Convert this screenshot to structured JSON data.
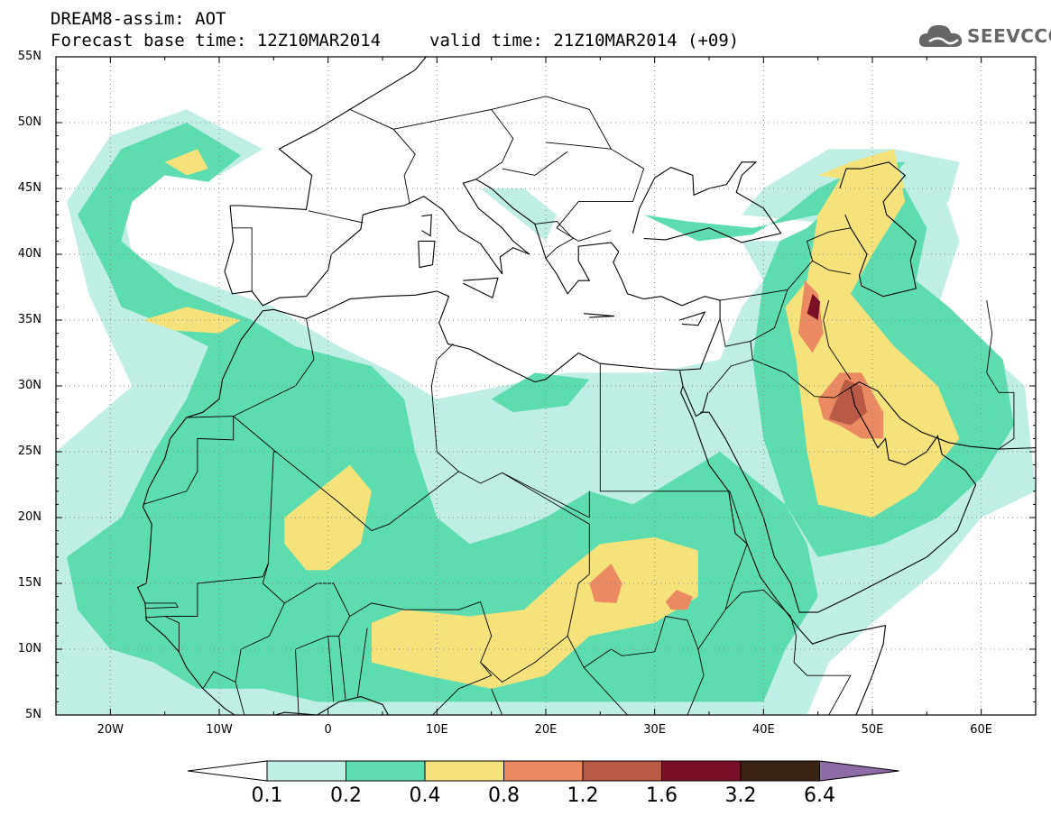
{
  "header": {
    "line1": "DREAM8-assim: AOT",
    "base_time": "Forecast base time: 12Z10MAR2014",
    "valid_time": "valid time: 21Z10MAR2014 (+09)"
  },
  "logo": {
    "text": "SEEVCCC",
    "icon": "cloud-icon"
  },
  "map": {
    "projection": "lat-lon",
    "lon_range": [
      -25,
      65
    ],
    "lat_range": [
      5,
      55
    ],
    "lat_labels": [
      "55N",
      "50N",
      "45N",
      "40N",
      "35N",
      "30N",
      "25N",
      "20N",
      "15N",
      "10N",
      "5N"
    ],
    "lon_labels": [
      "20W",
      "10W",
      "0",
      "10E",
      "20E",
      "30E",
      "40E",
      "50E",
      "60E"
    ],
    "grid": "dotted",
    "field": "AOT"
  },
  "colorbar": {
    "labels": [
      "0.1",
      "0.2",
      "0.4",
      "0.8",
      "1.2",
      "1.6",
      "3.2",
      "6.4"
    ],
    "colors": [
      "#ffffff",
      "#bfeee4",
      "#5ddcb0",
      "#f5e27a",
      "#eb8a62",
      "#b85a44",
      "#7a1028",
      "#3b2314",
      "#8e6aa6"
    ]
  }
}
